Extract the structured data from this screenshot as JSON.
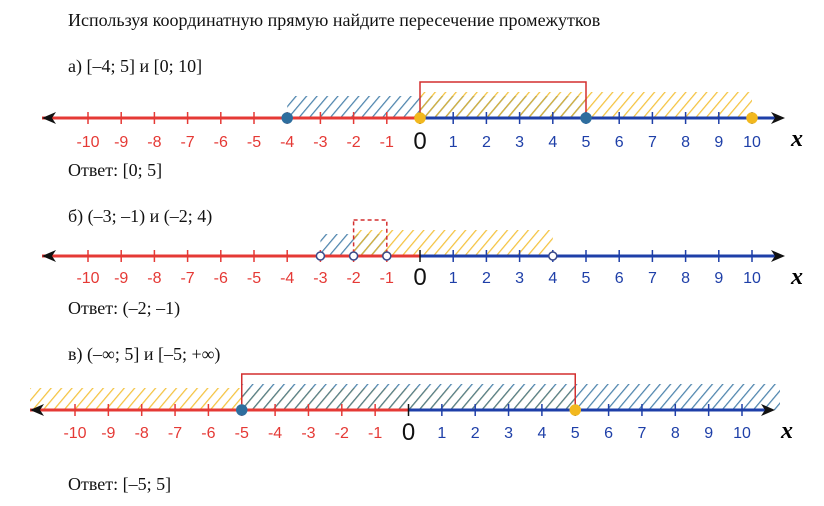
{
  "title": "Используя координатную прямую найдите пересечение промежутков",
  "axis": {
    "ticks": [
      "-10",
      "-9",
      "-8",
      "-7",
      "-6",
      "-5",
      "-4",
      "-3",
      "-2",
      "-1",
      "0",
      "1",
      "2",
      "3",
      "4",
      "5",
      "6",
      "7",
      "8",
      "9",
      "10"
    ],
    "variable": "x"
  },
  "problems": [
    {
      "label": "а) [–4; 5] и [0; 10]",
      "answer": "Ответ: [0; 5]",
      "intervals": [
        {
          "from": -4,
          "to": 5,
          "closed": true,
          "color": "#2e6e9e"
        },
        {
          "from": 0,
          "to": 10,
          "closed": true,
          "color": "#f2b81e"
        }
      ],
      "answer_box": {
        "from": 0,
        "to": 5,
        "dashed": false
      }
    },
    {
      "label": "б) (–3; –1) и (–2; 4)",
      "answer": "Ответ: (–2; –1)",
      "intervals": [
        {
          "from": -3,
          "to": -1,
          "closed": false,
          "color": "#2e6e9e"
        },
        {
          "from": -2,
          "to": 4,
          "closed": false,
          "color": "#f2b81e"
        }
      ],
      "answer_box": {
        "from": -2,
        "to": -1,
        "dashed": true
      }
    },
    {
      "label": "в) (–∞; 5] и [–5; +∞)",
      "answer": "Ответ: [–5; 5]",
      "intervals": [
        {
          "from": null,
          "to": 5,
          "closed": true,
          "color": "#f2b81e"
        },
        {
          "from": -5,
          "to": null,
          "closed": true,
          "color": "#2e6e9e"
        }
      ],
      "answer_box": {
        "from": -5,
        "to": 5,
        "dashed": false
      }
    }
  ]
}
